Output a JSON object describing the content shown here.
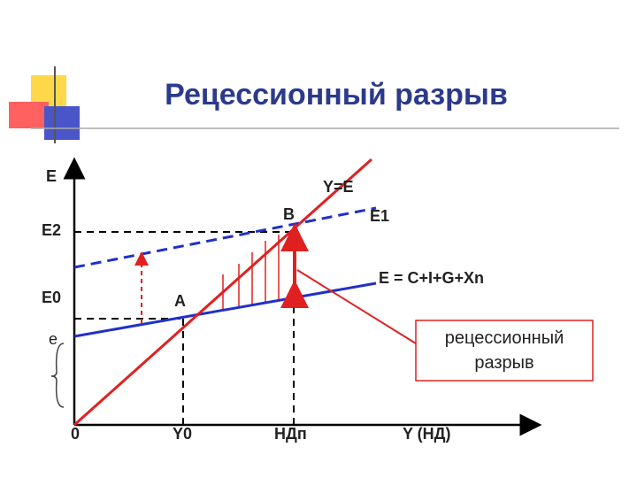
{
  "header": {
    "title": "Рецессионный разрыв"
  },
  "axes": {
    "y_label": "E",
    "x_label": "Y (НД)",
    "origin": "0"
  },
  "y_labels": {
    "e2": "E2",
    "e0": "E0",
    "e": "e"
  },
  "x_labels": {
    "y0": "Y0",
    "ndp": "НДп"
  },
  "lines": {
    "bisector": "Y=E",
    "e1": "E1",
    "e": "E = C+I+G+Xn"
  },
  "points": {
    "a": "A",
    "b": "B"
  },
  "callout": {
    "line1": "рецессионный",
    "line2": "разрыв"
  }
}
